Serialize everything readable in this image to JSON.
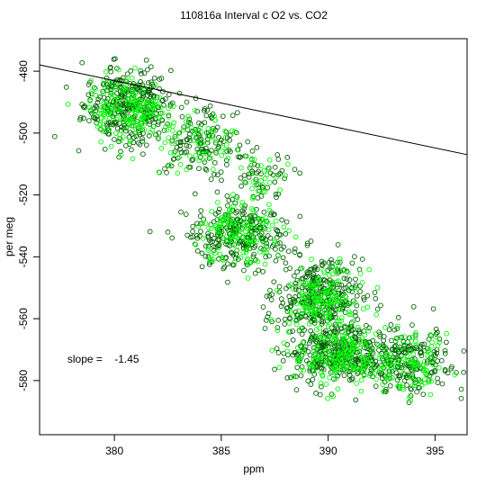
{
  "chart_data": {
    "type": "scatter",
    "title": "110816a   Interval c O2 vs. CO2",
    "xlabel": "ppm",
    "ylabel": "per meg",
    "xlim": [
      376.5,
      396.5
    ],
    "ylim": [
      -597.5,
      -469.5
    ],
    "xticks": [
      380,
      385,
      390,
      395
    ],
    "yticks": [
      -580,
      -560,
      -540,
      -520,
      -500,
      -480
    ],
    "grid": false,
    "annotation": {
      "label": "slope =",
      "value": "-1.45",
      "x": 377.8,
      "y": -573
    },
    "fit_line": {
      "slope": -1.45,
      "intercept": 67.95,
      "color": "#000000"
    },
    "series": [
      {
        "name": "",
        "color": "#006400",
        "marker": "open-circle",
        "clusters": [
          {
            "cx": 380.6,
            "cy": -491,
            "sx": 1.0,
            "sy": 6,
            "n": 320
          },
          {
            "cx": 383.8,
            "cy": -502,
            "sx": 1.2,
            "sy": 6,
            "n": 140
          },
          {
            "cx": 386.8,
            "cy": -513,
            "sx": 0.8,
            "sy": 5,
            "n": 50
          },
          {
            "cx": 385.8,
            "cy": -533,
            "sx": 1.1,
            "sy": 5,
            "n": 260
          },
          {
            "cx": 389.6,
            "cy": -553,
            "sx": 1.0,
            "sy": 6,
            "n": 300
          },
          {
            "cx": 390.3,
            "cy": -571,
            "sx": 1.1,
            "sy": 5,
            "n": 300
          },
          {
            "cx": 393.6,
            "cy": -574,
            "sx": 1.1,
            "sy": 5,
            "n": 230
          }
        ]
      },
      {
        "name": "",
        "color": "#00ff00",
        "marker": "open-circle",
        "clusters": [
          {
            "cx": 380.6,
            "cy": -492,
            "sx": 0.9,
            "sy": 5,
            "n": 160
          },
          {
            "cx": 384.0,
            "cy": -503,
            "sx": 1.1,
            "sy": 5,
            "n": 70
          },
          {
            "cx": 386.9,
            "cy": -514,
            "sx": 0.7,
            "sy": 4,
            "n": 25
          },
          {
            "cx": 385.9,
            "cy": -533,
            "sx": 1.0,
            "sy": 5,
            "n": 130
          },
          {
            "cx": 389.8,
            "cy": -554,
            "sx": 0.9,
            "sy": 5,
            "n": 150
          },
          {
            "cx": 390.4,
            "cy": -572,
            "sx": 1.0,
            "sy": 5,
            "n": 150
          },
          {
            "cx": 393.5,
            "cy": -575,
            "sx": 1.0,
            "sy": 5,
            "n": 110
          }
        ]
      }
    ]
  }
}
